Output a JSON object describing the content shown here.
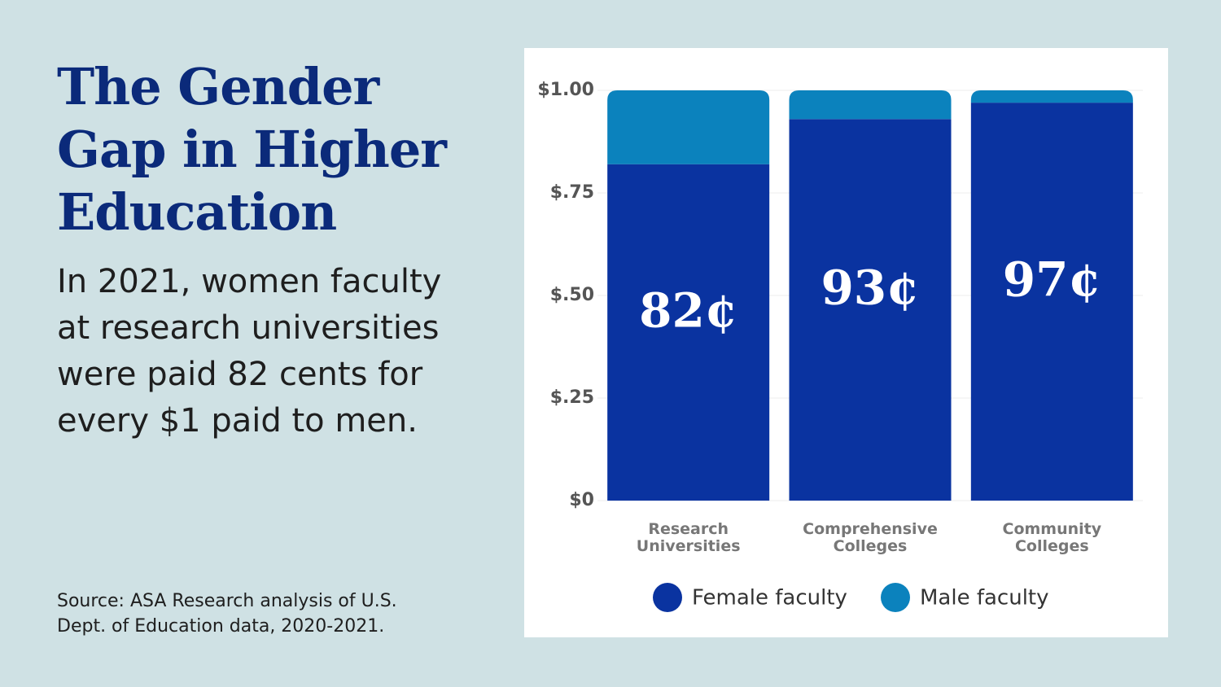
{
  "chart_data": {
    "type": "bar",
    "stacked": true,
    "title": "The Gender Gap in Higher Education",
    "subtitle": "In 2021, women faculty at research universities were paid 82 cents for every $1 paid to men.",
    "source": "Source: ASA Research analysis of U.S. Dept. of Education data, 2020-2021.",
    "categories": [
      "Research Universities",
      "Comprehensive Colleges",
      "Community Colleges"
    ],
    "series": [
      {
        "name": "Female faculty",
        "color": "#0a33a0",
        "values": [
          0.82,
          0.93,
          0.97
        ],
        "value_labels": [
          "82¢",
          "93¢",
          "97¢"
        ]
      },
      {
        "name": "Male faculty",
        "color": "#0b82bd",
        "values": [
          0.18,
          0.07,
          0.03
        ]
      }
    ],
    "ylim": [
      0,
      1
    ],
    "yticks": [
      {
        "value": 0,
        "label": "$0"
      },
      {
        "value": 0.25,
        "label": "$.25"
      },
      {
        "value": 0.5,
        "label": "$.50"
      },
      {
        "value": 0.75,
        "label": "$.75"
      },
      {
        "value": 1,
        "label": "$1.00"
      }
    ],
    "grid": true
  }
}
